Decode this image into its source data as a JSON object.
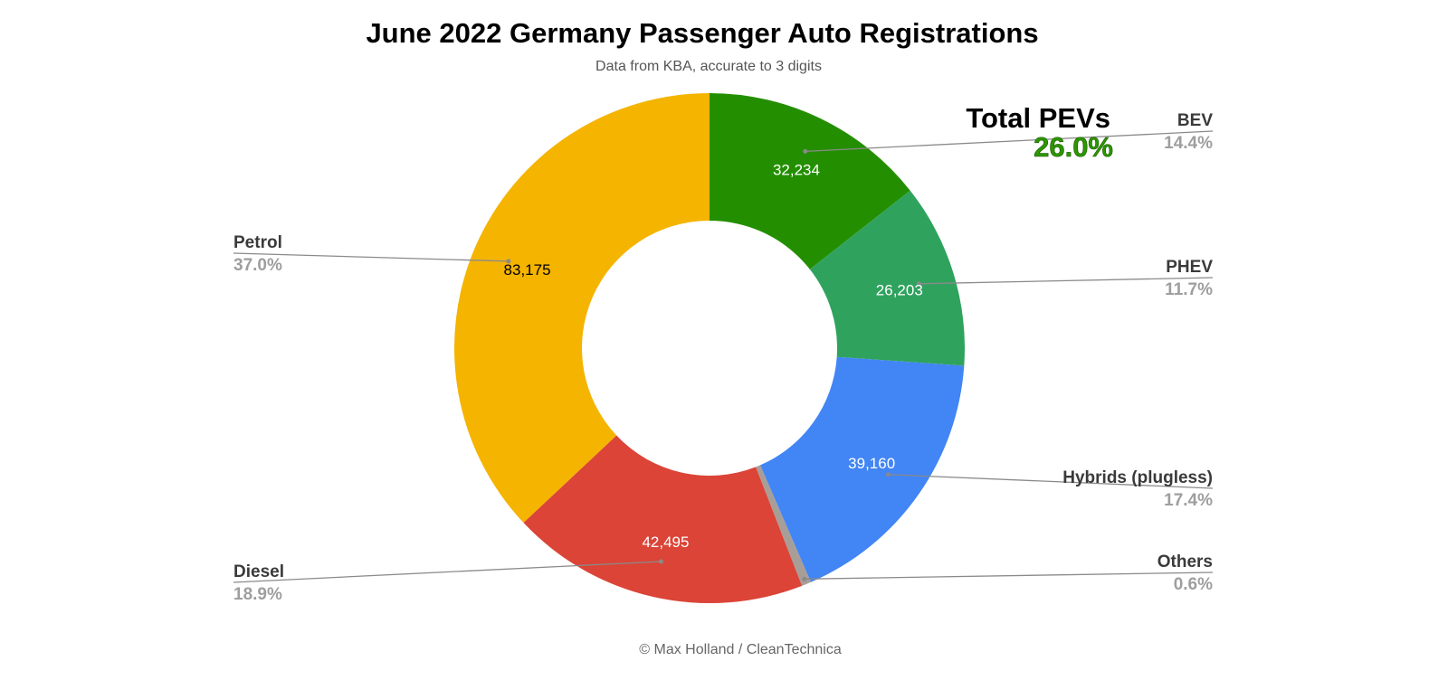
{
  "chart_data": {
    "type": "pie",
    "donut": true,
    "title": "June 2022 Germany Passenger Auto Registrations",
    "subtitle": "Data from KBA, accurate to 3 digits",
    "credit": "© Max Holland / CleanTechnica",
    "slices": [
      {
        "name": "BEV",
        "value": 32234,
        "value_label": "32,234",
        "percent_label": "14.4%",
        "percent": 14.4,
        "color": "#238f00",
        "label_color": "#ffffff"
      },
      {
        "name": "PHEV",
        "value": 26203,
        "value_label": "26,203",
        "percent_label": "11.7%",
        "percent": 11.7,
        "color": "#2fa35e",
        "label_color": "#ffffff"
      },
      {
        "name": "Hybrids (plugless)",
        "value": 39160,
        "value_label": "39,160",
        "percent_label": "17.4%",
        "percent": 17.4,
        "color": "#4285f4",
        "label_color": "#ffffff"
      },
      {
        "name": "Others",
        "value": null,
        "value_label": "",
        "percent_label": "0.6%",
        "percent": 0.6,
        "color": "#a89e98",
        "label_color": "#ffffff"
      },
      {
        "name": "Diesel",
        "value": 42495,
        "value_label": "42,495",
        "percent_label": "18.9%",
        "percent": 18.9,
        "color": "#db4437",
        "label_color": "#ffffff"
      },
      {
        "name": "Petrol",
        "value": 83175,
        "value_label": "83,175",
        "percent_label": "37.0%",
        "percent": 37.0,
        "color": "#f4b400",
        "label_color": "#000000"
      }
    ],
    "annotation": {
      "title": "Total PEVs",
      "value": "26.0%"
    },
    "legend": "outside-labels"
  }
}
